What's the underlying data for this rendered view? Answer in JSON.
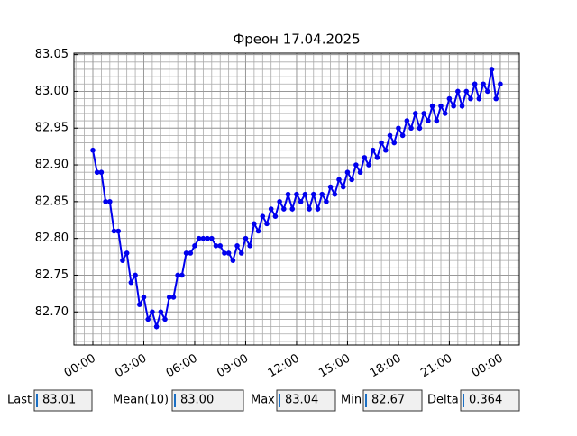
{
  "chart_data": {
    "type": "line",
    "title": "Фреон 17.04.2025",
    "x": [
      0,
      0.25,
      0.5,
      0.75,
      1,
      1.25,
      1.5,
      1.75,
      2,
      2.25,
      2.5,
      2.75,
      3,
      3.25,
      3.5,
      3.75,
      4,
      4.25,
      4.5,
      4.75,
      5,
      5.25,
      5.5,
      5.75,
      6,
      6.25,
      6.5,
      6.75,
      7,
      7.25,
      7.5,
      7.75,
      8,
      8.25,
      8.5,
      8.75,
      9,
      9.25,
      9.5,
      9.75,
      10,
      10.25,
      10.5,
      10.75,
      11,
      11.25,
      11.5,
      11.75,
      12,
      12.25,
      12.5,
      12.75,
      13,
      13.25,
      13.5,
      13.75,
      14,
      14.25,
      14.5,
      14.75,
      15,
      15.25,
      15.5,
      15.75,
      16,
      16.25,
      16.5,
      16.75,
      17,
      17.25,
      17.5,
      17.75,
      18,
      18.25,
      18.5,
      18.75,
      19,
      19.25,
      19.5,
      19.75,
      20,
      20.25,
      20.5,
      20.75,
      21,
      21.25,
      21.5,
      21.75,
      22,
      22.25,
      22.5,
      22.75,
      23,
      23.25,
      23.5,
      23.75,
      24
    ],
    "values": [
      82.92,
      82.89,
      82.89,
      82.85,
      82.85,
      82.81,
      82.81,
      82.77,
      82.78,
      82.74,
      82.75,
      82.71,
      82.72,
      82.69,
      82.7,
      82.68,
      82.7,
      82.69,
      82.72,
      82.72,
      82.75,
      82.75,
      82.78,
      82.78,
      82.79,
      82.8,
      82.8,
      82.8,
      82.8,
      82.79,
      82.79,
      82.78,
      82.78,
      82.77,
      82.79,
      82.78,
      82.8,
      82.79,
      82.82,
      82.81,
      82.83,
      82.82,
      82.84,
      82.83,
      82.85,
      82.84,
      82.86,
      82.84,
      82.86,
      82.85,
      82.86,
      82.84,
      82.86,
      82.84,
      82.86,
      82.85,
      82.87,
      82.86,
      82.88,
      82.87,
      82.89,
      82.88,
      82.9,
      82.89,
      82.91,
      82.9,
      82.92,
      82.91,
      82.93,
      82.92,
      82.94,
      82.93,
      82.95,
      82.94,
      82.96,
      82.95,
      82.97,
      82.95,
      82.97,
      82.96,
      82.98,
      82.96,
      82.98,
      82.97,
      82.99,
      82.98,
      83.0,
      82.98,
      83.0,
      82.99,
      83.01,
      82.99,
      83.01,
      83.0,
      83.03,
      82.99,
      83.01
    ],
    "color": "#0000ee",
    "xlim": [
      -1.115,
      25.12
    ],
    "xticks": [
      {
        "value": 0,
        "label": "00:00"
      },
      {
        "value": 3,
        "label": "03:00"
      },
      {
        "value": 6,
        "label": "06:00"
      },
      {
        "value": 9,
        "label": "09:00"
      },
      {
        "value": 12,
        "label": "12:00"
      },
      {
        "value": 15,
        "label": "15:00"
      },
      {
        "value": 18,
        "label": "18:00"
      },
      {
        "value": 21,
        "label": "21:00"
      },
      {
        "value": 24,
        "label": "00:00"
      }
    ],
    "ylim": [
      82.655,
      83.052
    ],
    "yticks": [
      {
        "value": 82.7,
        "label": "82.70"
      },
      {
        "value": 82.75,
        "label": "82.75"
      },
      {
        "value": 82.8,
        "label": "82.80"
      },
      {
        "value": 82.85,
        "label": "82.85"
      },
      {
        "value": 82.9,
        "label": "82.90"
      },
      {
        "value": 82.95,
        "label": "82.95"
      },
      {
        "value": 83.0,
        "label": "83.00"
      },
      {
        "value": 83.05,
        "label": "83.05"
      }
    ],
    "grid": true,
    "x_minor_step": 0.5,
    "y_minor_step": 0.01
  },
  "stats": [
    {
      "label": "Last",
      "value": "83.01"
    },
    {
      "label": "Mean(10)",
      "value": "83.00"
    },
    {
      "label": "Max",
      "value": "83.04"
    },
    {
      "label": "Min",
      "value": "82.67"
    },
    {
      "label": "Delta",
      "value": "0.364"
    }
  ]
}
